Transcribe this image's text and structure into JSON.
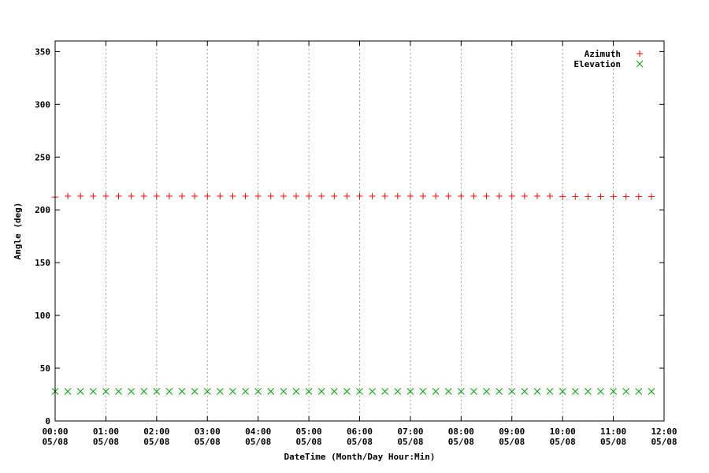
{
  "chart_data": {
    "type": "scatter",
    "xlabel": "DateTime (Month/Day Hour:Min)",
    "ylabel": "Angle (deg)",
    "xlim": [
      "05/08 00:00",
      "05/08 12:00"
    ],
    "ylim": [
      0,
      360
    ],
    "y_ticks": [
      0,
      50,
      100,
      150,
      200,
      250,
      300,
      350
    ],
    "x_ticks": [
      {
        "time": "00:00",
        "date": "05/08"
      },
      {
        "time": "01:00",
        "date": "05/08"
      },
      {
        "time": "02:00",
        "date": "05/08"
      },
      {
        "time": "03:00",
        "date": "05/08"
      },
      {
        "time": "04:00",
        "date": "05/08"
      },
      {
        "time": "05:00",
        "date": "05/08"
      },
      {
        "time": "06:00",
        "date": "05/08"
      },
      {
        "time": "07:00",
        "date": "05/08"
      },
      {
        "time": "08:00",
        "date": "05/08"
      },
      {
        "time": "09:00",
        "date": "05/08"
      },
      {
        "time": "10:00",
        "date": "05/08"
      },
      {
        "time": "11:00",
        "date": "05/08"
      },
      {
        "time": "12:00",
        "date": "05/08"
      }
    ],
    "grid": "vertical-dotted",
    "legend_position": "top-right",
    "x": [
      "00:00",
      "00:15",
      "00:30",
      "00:45",
      "01:00",
      "01:15",
      "01:30",
      "01:45",
      "02:00",
      "02:15",
      "02:30",
      "02:45",
      "03:00",
      "03:15",
      "03:30",
      "03:45",
      "04:00",
      "04:15",
      "04:30",
      "04:45",
      "05:00",
      "05:15",
      "05:30",
      "05:45",
      "06:00",
      "06:15",
      "06:30",
      "06:45",
      "07:00",
      "07:15",
      "07:30",
      "07:45",
      "08:00",
      "08:15",
      "08:30",
      "08:45",
      "09:00",
      "09:15",
      "09:30",
      "09:45",
      "10:00",
      "10:15",
      "10:30",
      "10:45",
      "11:00",
      "11:15",
      "11:30",
      "11:45"
    ],
    "series": [
      {
        "name": "Azimuth",
        "marker": "plus",
        "color": "#ff0000",
        "values": [
          212,
          213,
          213,
          213,
          213,
          213,
          213,
          213,
          213,
          213,
          213,
          213,
          213,
          213,
          213,
          213,
          213,
          213,
          213,
          213,
          213,
          213,
          213,
          213,
          213,
          213,
          213,
          213,
          213,
          213,
          213,
          213,
          213,
          213,
          213,
          213,
          213,
          213,
          213,
          213,
          212.5,
          212.5,
          212.5,
          212.5,
          212.5,
          212.5,
          212.5,
          212.5
        ]
      },
      {
        "name": "Elevation",
        "marker": "cross",
        "color": "#00a000",
        "values": [
          28,
          28,
          28,
          28,
          28,
          28,
          28,
          28,
          28,
          28,
          28,
          28,
          28,
          28,
          28,
          28,
          28,
          28,
          28,
          28,
          28,
          28,
          28,
          28,
          28,
          28,
          28,
          28,
          28,
          28,
          28,
          28,
          28,
          28,
          28,
          28,
          28,
          28,
          28,
          28,
          28,
          28,
          28,
          28,
          28,
          28,
          28,
          28
        ]
      }
    ]
  }
}
